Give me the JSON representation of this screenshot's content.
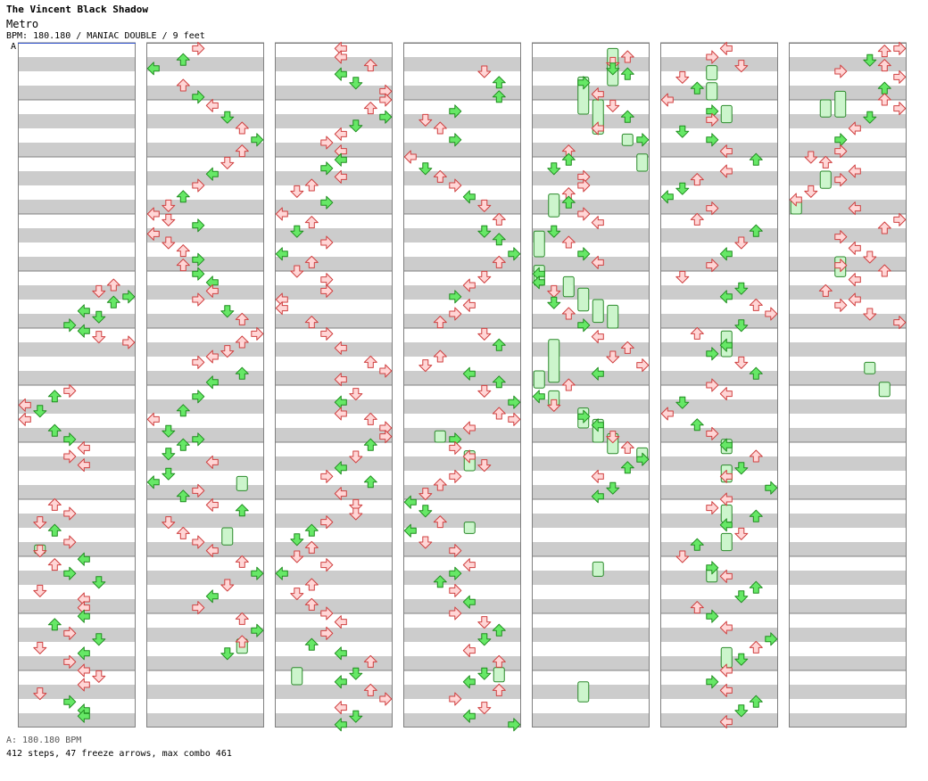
{
  "song": {
    "title": "The Vincent Black Shadow",
    "artist": "Metro",
    "info": "BPM: 180.180 / MANIAC DOUBLE / 9 feet",
    "marker": "A"
  },
  "footer": {
    "bpm_line": "A: 180.180 BPM",
    "stats_line": "412 steps, 47 freeze arrows, max combo 461"
  },
  "colors": {
    "red_fill": "#ffd6d6",
    "red_stroke": "#d04040",
    "green_fill": "#66e866",
    "green_stroke": "#1e8c1e",
    "freeze_fill": "#ccf5cc",
    "freeze_stroke": "#2a8a2a",
    "stripe": "#cccccc",
    "border": "#808080"
  },
  "chart_data": {
    "type": "step-chart",
    "columns": 7,
    "measures_per_column": 12,
    "lanes": 8,
    "total_measures": 82,
    "notes_note": "t = measure position (beats/4), lane 0-7",
    "notes": [
      [
        4.25,
        6
      ],
      [
        4.35,
        5
      ],
      [
        4.45,
        7
      ],
      [
        4.55,
        6
      ],
      [
        4.7,
        4
      ],
      [
        4.8,
        5
      ],
      [
        4.95,
        3
      ],
      [
        5.05,
        4
      ],
      [
        5.15,
        5
      ],
      [
        5.25,
        7
      ],
      [
        6.1,
        3
      ],
      [
        6.2,
        2
      ],
      [
        6.35,
        0
      ],
      [
        6.45,
        1
      ],
      [
        6.6,
        0
      ],
      [
        6.8,
        2
      ],
      [
        6.95,
        3
      ],
      [
        7.1,
        4
      ],
      [
        7.25,
        3
      ],
      [
        7.4,
        4
      ],
      [
        8.1,
        2
      ],
      [
        8.25,
        3
      ],
      [
        8.4,
        1
      ],
      [
        8.55,
        2
      ],
      [
        8.75,
        3
      ],
      [
        8.9,
        1
      ],
      [
        9.05,
        4
      ],
      [
        9.15,
        2
      ],
      [
        9.3,
        3
      ],
      [
        9.45,
        5
      ],
      [
        9.6,
        1
      ],
      [
        9.75,
        4
      ],
      [
        9.9,
        4
      ],
      [
        10.05,
        4
      ],
      [
        10.2,
        2
      ],
      [
        10.35,
        3
      ],
      [
        10.45,
        5
      ],
      [
        10.6,
        1
      ],
      [
        10.7,
        4
      ],
      [
        10.85,
        3
      ],
      [
        11.0,
        4
      ],
      [
        11.1,
        5
      ],
      [
        11.25,
        4
      ],
      [
        11.4,
        1
      ],
      [
        11.55,
        3
      ],
      [
        11.7,
        4
      ],
      [
        11.8,
        4
      ],
      [
        12.1,
        3
      ],
      [
        12.3,
        2
      ],
      [
        12.45,
        0
      ],
      [
        12.75,
        2
      ],
      [
        12.95,
        3
      ],
      [
        13.1,
        4
      ],
      [
        13.3,
        5
      ],
      [
        13.5,
        6
      ],
      [
        13.7,
        7
      ],
      [
        13.9,
        6
      ],
      [
        14.1,
        5
      ],
      [
        14.3,
        4
      ],
      [
        14.5,
        3
      ],
      [
        14.7,
        2
      ],
      [
        14.85,
        1
      ],
      [
        15.0,
        0
      ],
      [
        15.1,
        1
      ],
      [
        15.2,
        3
      ],
      [
        15.35,
        0
      ],
      [
        15.5,
        1
      ],
      [
        15.65,
        2
      ],
      [
        15.8,
        3
      ],
      [
        15.9,
        2
      ],
      [
        16.05,
        3
      ],
      [
        16.2,
        4
      ],
      [
        16.35,
        4
      ],
      [
        16.5,
        3
      ],
      [
        16.7,
        5
      ],
      [
        16.85,
        6
      ],
      [
        17.1,
        7
      ],
      [
        17.25,
        6
      ],
      [
        17.4,
        5
      ],
      [
        17.5,
        4
      ],
      [
        17.6,
        3
      ],
      [
        17.8,
        6
      ],
      [
        17.95,
        4
      ],
      [
        18.2,
        3
      ],
      [
        18.45,
        2
      ],
      [
        18.6,
        0
      ],
      [
        18.8,
        1
      ],
      [
        18.95,
        3
      ],
      [
        19.05,
        2
      ],
      [
        19.2,
        1
      ],
      [
        19.35,
        4
      ],
      [
        19.55,
        1
      ],
      [
        19.7,
        0
      ],
      [
        19.85,
        3
      ],
      [
        19.95,
        2
      ],
      [
        20.1,
        4
      ],
      [
        20.2,
        6
      ],
      [
        20.4,
        1
      ],
      [
        20.6,
        2
      ],
      [
        20.75,
        3
      ],
      [
        20.9,
        4
      ],
      [
        21.1,
        6
      ],
      [
        21.3,
        7
      ],
      [
        21.5,
        5
      ],
      [
        21.7,
        4
      ],
      [
        21.9,
        3
      ],
      [
        22.1,
        6
      ],
      [
        22.3,
        7
      ],
      [
        22.5,
        6
      ],
      [
        22.7,
        5
      ],
      [
        24.1,
        4
      ],
      [
        24.25,
        4
      ],
      [
        24.4,
        6
      ],
      [
        24.55,
        4
      ],
      [
        24.7,
        5
      ],
      [
        24.85,
        7
      ],
      [
        25.0,
        7
      ],
      [
        25.15,
        6
      ],
      [
        25.3,
        7
      ],
      [
        25.45,
        5
      ],
      [
        25.6,
        4
      ],
      [
        25.75,
        3
      ],
      [
        25.9,
        4
      ],
      [
        26.05,
        4
      ],
      [
        26.2,
        3
      ],
      [
        26.35,
        4
      ],
      [
        26.5,
        2
      ],
      [
        26.6,
        1
      ],
      [
        26.8,
        3
      ],
      [
        27.0,
        0
      ],
      [
        27.15,
        2
      ],
      [
        27.3,
        1
      ],
      [
        27.5,
        3
      ],
      [
        27.7,
        0
      ],
      [
        27.85,
        2
      ],
      [
        28.0,
        1
      ],
      [
        28.15,
        3
      ],
      [
        28.35,
        3
      ],
      [
        28.5,
        0
      ],
      [
        28.65,
        0
      ],
      [
        28.9,
        2
      ],
      [
        29.1,
        3
      ],
      [
        29.35,
        4
      ],
      [
        29.6,
        6
      ],
      [
        29.75,
        7
      ],
      [
        29.9,
        4
      ],
      [
        30.15,
        5
      ],
      [
        30.3,
        4
      ],
      [
        30.5,
        4
      ],
      [
        30.6,
        6
      ],
      [
        30.75,
        7
      ],
      [
        30.9,
        7
      ],
      [
        31.05,
        6
      ],
      [
        31.25,
        5
      ],
      [
        31.45,
        4
      ],
      [
        31.6,
        3
      ],
      [
        31.7,
        6
      ],
      [
        31.9,
        4
      ],
      [
        32.1,
        5
      ],
      [
        32.25,
        5
      ],
      [
        32.4,
        3
      ],
      [
        32.55,
        2
      ],
      [
        32.7,
        1
      ],
      [
        32.85,
        2
      ],
      [
        33.0,
        1
      ],
      [
        33.15,
        3
      ],
      [
        33.3,
        0
      ],
      [
        33.5,
        2
      ],
      [
        33.65,
        1
      ],
      [
        33.85,
        2
      ],
      [
        34.0,
        3
      ],
      [
        34.15,
        4
      ],
      [
        34.35,
        3
      ],
      [
        34.55,
        2
      ],
      [
        34.7,
        4
      ],
      [
        34.85,
        6
      ],
      [
        35.05,
        5
      ],
      [
        35.2,
        4
      ],
      [
        35.35,
        6
      ],
      [
        35.5,
        7
      ],
      [
        35.65,
        4
      ],
      [
        35.8,
        5
      ],
      [
        35.95,
        4
      ],
      [
        36.5,
        5
      ],
      [
        36.7,
        6
      ],
      [
        36.95,
        6
      ],
      [
        37.2,
        3
      ],
      [
        37.35,
        1
      ],
      [
        37.5,
        2
      ],
      [
        37.7,
        3
      ],
      [
        38.0,
        0
      ],
      [
        38.2,
        1
      ],
      [
        38.35,
        2
      ],
      [
        38.5,
        3
      ],
      [
        38.7,
        4
      ],
      [
        38.85,
        5
      ],
      [
        39.1,
        6
      ],
      [
        39.3,
        5
      ],
      [
        39.45,
        6
      ],
      [
        39.7,
        7
      ],
      [
        39.85,
        6
      ],
      [
        40.1,
        5
      ],
      [
        40.25,
        4
      ],
      [
        40.45,
        3
      ],
      [
        40.6,
        4
      ],
      [
        40.75,
        3
      ],
      [
        40.9,
        2
      ],
      [
        41.1,
        5
      ],
      [
        41.3,
        6
      ],
      [
        41.5,
        2
      ],
      [
        41.65,
        1
      ],
      [
        41.8,
        4
      ],
      [
        41.95,
        6
      ],
      [
        42.1,
        5
      ],
      [
        42.3,
        7
      ],
      [
        42.5,
        6
      ],
      [
        42.6,
        7
      ],
      [
        42.75,
        4
      ],
      [
        42.95,
        3
      ],
      [
        43.1,
        3
      ],
      [
        43.25,
        4
      ],
      [
        43.4,
        5
      ],
      [
        43.6,
        3
      ],
      [
        43.75,
        2
      ],
      [
        43.9,
        1
      ],
      [
        44.05,
        0
      ],
      [
        44.2,
        1
      ],
      [
        44.4,
        2
      ],
      [
        44.55,
        0
      ],
      [
        44.75,
        1
      ],
      [
        44.9,
        3
      ],
      [
        45.15,
        4
      ],
      [
        45.3,
        3
      ],
      [
        45.45,
        2
      ],
      [
        45.6,
        3
      ],
      [
        45.8,
        4
      ],
      [
        46.0,
        3
      ],
      [
        46.15,
        5
      ],
      [
        46.3,
        6
      ],
      [
        46.45,
        5
      ],
      [
        46.65,
        4
      ],
      [
        46.85,
        6
      ],
      [
        47.05,
        5
      ],
      [
        47.2,
        4
      ],
      [
        47.35,
        6
      ],
      [
        47.5,
        3
      ],
      [
        47.65,
        5
      ],
      [
        47.8,
        4
      ],
      [
        47.95,
        7
      ],
      [
        48.25,
        6
      ],
      [
        48.35,
        5
      ],
      [
        48.45,
        5
      ],
      [
        48.55,
        6
      ],
      [
        48.7,
        3
      ],
      [
        48.9,
        4
      ],
      [
        49.1,
        5
      ],
      [
        49.3,
        6
      ],
      [
        49.5,
        4
      ],
      [
        49.7,
        7
      ],
      [
        49.9,
        2
      ],
      [
        50.05,
        2
      ],
      [
        50.2,
        1
      ],
      [
        50.35,
        3
      ],
      [
        50.5,
        3
      ],
      [
        50.65,
        2
      ],
      [
        50.8,
        2
      ],
      [
        51.0,
        3
      ],
      [
        51.15,
        4
      ],
      [
        51.3,
        1
      ],
      [
        51.5,
        2
      ],
      [
        51.7,
        3
      ],
      [
        51.85,
        4
      ],
      [
        52.05,
        0
      ],
      [
        52.2,
        0
      ],
      [
        52.35,
        1
      ],
      [
        52.55,
        1
      ],
      [
        52.75,
        2
      ],
      [
        52.95,
        3
      ],
      [
        53.15,
        4
      ],
      [
        53.35,
        6
      ],
      [
        53.5,
        5
      ],
      [
        53.65,
        7
      ],
      [
        53.8,
        4
      ],
      [
        54.0,
        2
      ],
      [
        54.2,
        0
      ],
      [
        54.35,
        1
      ],
      [
        54.55,
        3
      ],
      [
        54.7,
        4
      ],
      [
        54.9,
        5
      ],
      [
        55.1,
        6
      ],
      [
        55.3,
        7
      ],
      [
        55.45,
        6
      ],
      [
        55.6,
        4
      ],
      [
        55.8,
        5
      ],
      [
        55.95,
        4
      ],
      [
        60.1,
        4
      ],
      [
        60.25,
        3
      ],
      [
        60.4,
        5
      ],
      [
        60.6,
        1
      ],
      [
        60.8,
        2
      ],
      [
        61.0,
        0
      ],
      [
        61.2,
        3
      ],
      [
        61.35,
        3
      ],
      [
        61.55,
        1
      ],
      [
        61.7,
        3
      ],
      [
        61.9,
        4
      ],
      [
        62.05,
        6
      ],
      [
        62.25,
        4
      ],
      [
        62.4,
        2
      ],
      [
        62.55,
        1
      ],
      [
        62.7,
        0
      ],
      [
        62.9,
        3
      ],
      [
        63.1,
        2
      ],
      [
        63.3,
        6
      ],
      [
        63.5,
        5
      ],
      [
        63.7,
        4
      ],
      [
        63.9,
        3
      ],
      [
        64.1,
        1
      ],
      [
        64.3,
        5
      ],
      [
        64.45,
        4
      ],
      [
        64.6,
        6
      ],
      [
        64.75,
        7
      ],
      [
        64.95,
        5
      ],
      [
        65.1,
        2
      ],
      [
        65.3,
        4
      ],
      [
        65.45,
        3
      ],
      [
        65.6,
        5
      ],
      [
        65.8,
        6
      ],
      [
        66.0,
        3
      ],
      [
        66.15,
        4
      ],
      [
        66.3,
        1
      ],
      [
        66.5,
        0
      ],
      [
        66.7,
        2
      ],
      [
        66.85,
        3
      ],
      [
        67.05,
        4
      ],
      [
        67.25,
        6
      ],
      [
        67.45,
        5
      ],
      [
        67.6,
        4
      ],
      [
        67.8,
        7
      ],
      [
        68.0,
        4
      ],
      [
        68.15,
        3
      ],
      [
        68.3,
        6
      ],
      [
        68.45,
        4
      ],
      [
        68.6,
        5
      ],
      [
        68.8,
        2
      ],
      [
        69.0,
        1
      ],
      [
        69.2,
        3
      ],
      [
        69.35,
        4
      ],
      [
        69.55,
        6
      ],
      [
        69.7,
        5
      ],
      [
        69.9,
        2
      ],
      [
        70.05,
        3
      ],
      [
        70.25,
        4
      ],
      [
        70.45,
        7
      ],
      [
        70.6,
        6
      ],
      [
        70.8,
        5
      ],
      [
        71.0,
        4
      ],
      [
        71.2,
        3
      ],
      [
        71.35,
        4
      ],
      [
        71.55,
        6
      ],
      [
        71.7,
        5
      ],
      [
        71.9,
        4
      ],
      [
        72.1,
        7
      ],
      [
        72.15,
        6
      ],
      [
        72.3,
        5
      ],
      [
        72.4,
        6
      ],
      [
        72.5,
        3
      ],
      [
        72.6,
        7
      ],
      [
        72.8,
        6
      ],
      [
        73.0,
        6
      ],
      [
        73.15,
        7
      ],
      [
        73.3,
        5
      ],
      [
        73.5,
        4
      ],
      [
        73.7,
        3
      ],
      [
        73.9,
        3
      ],
      [
        74.0,
        1
      ],
      [
        74.1,
        2
      ],
      [
        74.25,
        4
      ],
      [
        74.4,
        3
      ],
      [
        74.6,
        1
      ],
      [
        74.75,
        0
      ],
      [
        74.9,
        4
      ],
      [
        75.1,
        7
      ],
      [
        75.25,
        6
      ],
      [
        75.4,
        3
      ],
      [
        75.6,
        4
      ],
      [
        75.75,
        5
      ],
      [
        75.9,
        3
      ],
      [
        76.0,
        6
      ],
      [
        76.15,
        4
      ],
      [
        76.35,
        2
      ],
      [
        76.5,
        4
      ],
      [
        76.6,
        3
      ],
      [
        76.75,
        5
      ],
      [
        76.9,
        7
      ]
    ],
    "freezes": [
      [
        8.8,
        8.95,
        1
      ],
      [
        19.6,
        19.85,
        6
      ],
      [
        20.5,
        20.8,
        5
      ],
      [
        22.45,
        22.7,
        6
      ],
      [
        34.95,
        35.25,
        1
      ],
      [
        42.8,
        43.0,
        2
      ],
      [
        43.15,
        43.5,
        4
      ],
      [
        44.4,
        44.6,
        4
      ],
      [
        46.95,
        47.2,
        6
      ],
      [
        49.6,
        49.8,
        6
      ],
      [
        49.95,
        50.25,
        7
      ],
      [
        48.1,
        48.75,
        5
      ],
      [
        48.6,
        49.25,
        3
      ],
      [
        49.0,
        49.6,
        4
      ],
      [
        50.65,
        51.05,
        1
      ],
      [
        51.3,
        51.75,
        0
      ],
      [
        51.9,
        52.25,
        0
      ],
      [
        52.1,
        52.45,
        2
      ],
      [
        52.3,
        52.7,
        3
      ],
      [
        52.5,
        52.9,
        4
      ],
      [
        52.6,
        53.0,
        5
      ],
      [
        53.2,
        53.95,
        1
      ],
      [
        53.75,
        54.05,
        0
      ],
      [
        54.1,
        54.35,
        1
      ],
      [
        54.4,
        54.75,
        3
      ],
      [
        54.6,
        55.0,
        4
      ],
      [
        54.85,
        55.2,
        5
      ],
      [
        55.1,
        55.3,
        7
      ],
      [
        57.1,
        57.35,
        4
      ],
      [
        59.2,
        59.55,
        3
      ],
      [
        60.4,
        60.65,
        3
      ],
      [
        60.7,
        61.0,
        3
      ],
      [
        61.1,
        61.4,
        4
      ],
      [
        65.05,
        65.5,
        4
      ],
      [
        66.95,
        67.2,
        4
      ],
      [
        67.4,
        67.7,
        4
      ],
      [
        68.1,
        68.4,
        4
      ],
      [
        68.6,
        68.9,
        4
      ],
      [
        69.2,
        69.45,
        3
      ],
      [
        70.6,
        70.95,
        4
      ],
      [
        72.85,
        73.3,
        3
      ],
      [
        73.0,
        73.3,
        2
      ],
      [
        74.25,
        74.55,
        2
      ],
      [
        74.75,
        75.0,
        0
      ],
      [
        75.75,
        76.1,
        3
      ],
      [
        77.6,
        77.8,
        5
      ],
      [
        77.95,
        78.2,
        6
      ]
    ]
  }
}
